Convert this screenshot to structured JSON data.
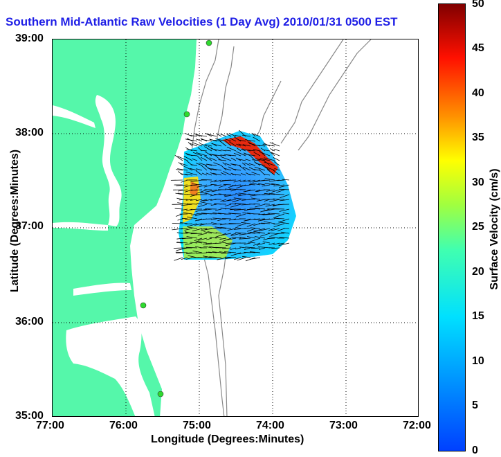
{
  "title": "Southern Mid-Atlantic Raw Velocities (1 Day Avg) 2010/01/31 0500 EST",
  "axes": {
    "xlabel": "Longitude (Degrees:Minutes)",
    "ylabel": "Latitude (Degrees:Minutes)",
    "x_ticks": [
      "77:00",
      "76:00",
      "75:00",
      "74:00",
      "73:00",
      "72:00"
    ],
    "y_ticks": [
      "39:00",
      "38:00",
      "37:00",
      "36:00",
      "35:00"
    ]
  },
  "colorbar": {
    "title": "Surface Velocity (cm/s)",
    "ticks": [
      "50",
      "45",
      "40",
      "35",
      "30",
      "25",
      "20",
      "15",
      "10",
      "5",
      "0"
    ],
    "range": [
      0,
      50
    ]
  },
  "map": {
    "lon_range": [
      -77,
      -72
    ],
    "lat_range": [
      35,
      39
    ],
    "land_color": "#55f7aa",
    "water_color": "#ffffff",
    "contour_color": "#888888",
    "grid": true
  },
  "chart_data": {
    "type": "heatmap",
    "title": "Southern Mid-Atlantic Raw Velocities (1 Day Avg) 2010/01/31 0500 EST",
    "xlabel": "Longitude (Degrees:Minutes)",
    "ylabel": "Latitude (Degrees:Minutes)",
    "colorbar_label": "Surface Velocity (cm/s)",
    "value_range": [
      0,
      50
    ]
  }
}
